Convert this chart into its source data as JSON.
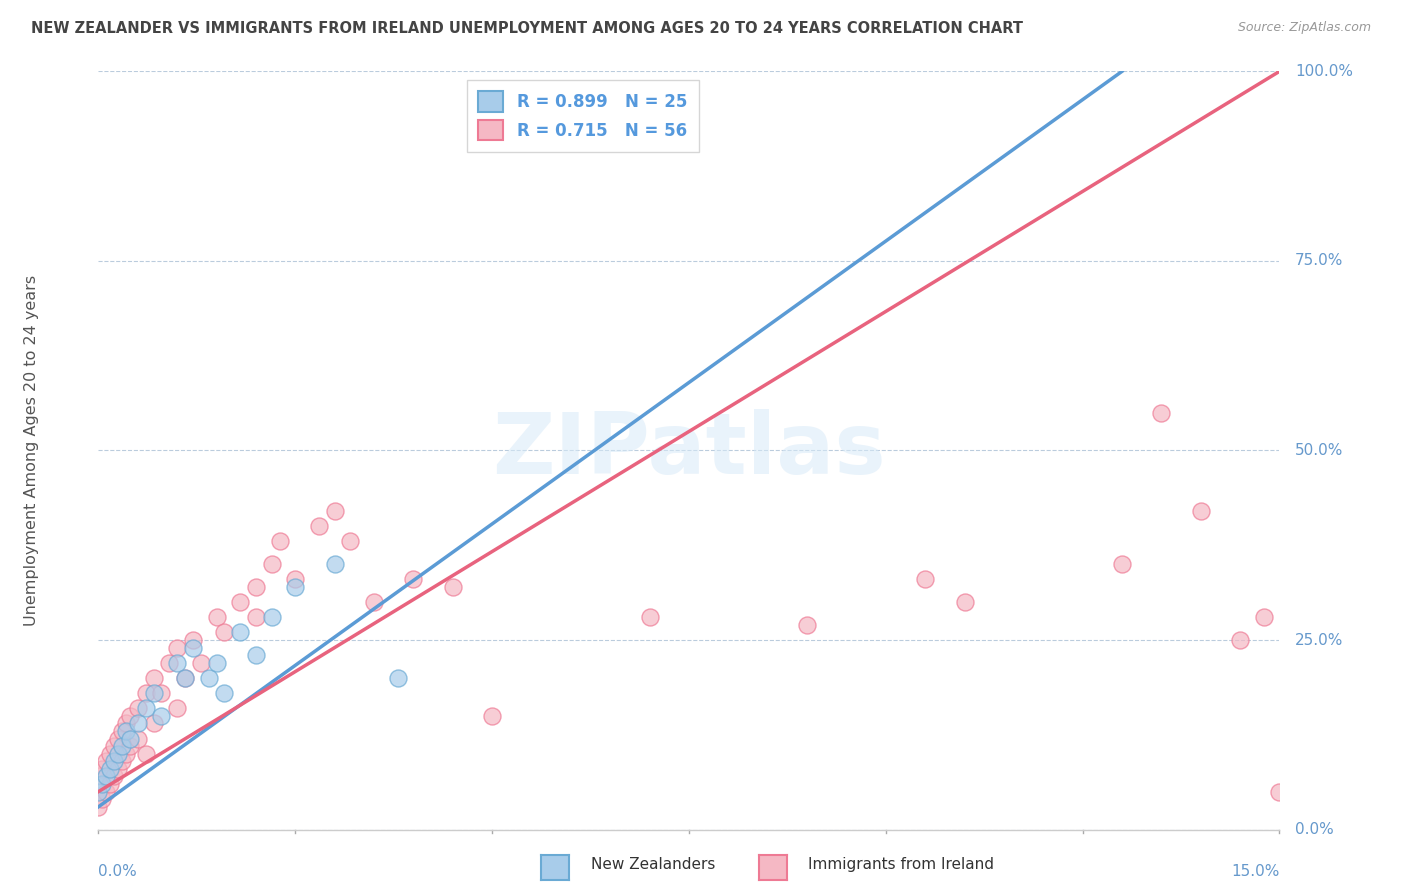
{
  "title": "NEW ZEALANDER VS IMMIGRANTS FROM IRELAND UNEMPLOYMENT AMONG AGES 20 TO 24 YEARS CORRELATION CHART",
  "source": "Source: ZipAtlas.com",
  "ylabel": "Unemployment Among Ages 20 to 24 years",
  "ytick_labels": [
    "0.0%",
    "25.0%",
    "50.0%",
    "75.0%",
    "100.0%"
  ],
  "ytick_values": [
    0,
    25,
    50,
    75,
    100
  ],
  "xmin": 0.0,
  "xmax": 15.0,
  "ymin": 0.0,
  "ymax": 100.0,
  "nz_R": 0.899,
  "nz_N": 25,
  "ire_R": 0.715,
  "ire_N": 56,
  "nz_color": "#A8CCEA",
  "ire_color": "#F5B8C4",
  "nz_edge_color": "#6AAAD4",
  "ire_edge_color": "#EE7A94",
  "nz_line_color": "#5B9BD5",
  "ire_line_color": "#E8637E",
  "legend_nz_color": "#A8CCEA",
  "legend_ire_color": "#F5B8C4",
  "watermark": "ZIPatlas",
  "nz_line_x0": 0.0,
  "nz_line_y0": 3.0,
  "nz_line_x1": 13.0,
  "nz_line_y1": 100.0,
  "ire_line_x0": 0.0,
  "ire_line_y0": 5.0,
  "ire_line_x1": 15.0,
  "ire_line_y1": 100.0,
  "nz_scatter_x": [
    0.0,
    0.05,
    0.1,
    0.15,
    0.2,
    0.25,
    0.3,
    0.35,
    0.4,
    0.5,
    0.6,
    0.7,
    0.8,
    1.0,
    1.1,
    1.2,
    1.4,
    1.5,
    1.6,
    1.8,
    2.0,
    2.2,
    2.5,
    3.0,
    3.8
  ],
  "nz_scatter_y": [
    5,
    6,
    7,
    8,
    9,
    10,
    11,
    13,
    12,
    14,
    16,
    18,
    15,
    22,
    20,
    24,
    20,
    22,
    18,
    26,
    23,
    28,
    32,
    35,
    20
  ],
  "ire_scatter_x": [
    0.0,
    0.0,
    0.05,
    0.05,
    0.1,
    0.1,
    0.15,
    0.15,
    0.2,
    0.2,
    0.25,
    0.25,
    0.3,
    0.3,
    0.35,
    0.35,
    0.4,
    0.4,
    0.5,
    0.5,
    0.6,
    0.6,
    0.7,
    0.7,
    0.8,
    0.9,
    1.0,
    1.0,
    1.1,
    1.2,
    1.3,
    1.5,
    1.6,
    1.8,
    2.0,
    2.0,
    2.2,
    2.3,
    2.5,
    2.8,
    3.0,
    3.2,
    3.5,
    4.0,
    4.5,
    5.0,
    7.0,
    9.0,
    10.5,
    11.0,
    13.0,
    13.5,
    14.0,
    14.5,
    14.8,
    15.0
  ],
  "ire_scatter_y": [
    3,
    7,
    4,
    8,
    5,
    9,
    6,
    10,
    7,
    11,
    8,
    12,
    9,
    13,
    10,
    14,
    11,
    15,
    12,
    16,
    10,
    18,
    14,
    20,
    18,
    22,
    16,
    24,
    20,
    25,
    22,
    28,
    26,
    30,
    32,
    28,
    35,
    38,
    33,
    40,
    42,
    38,
    30,
    33,
    32,
    15,
    28,
    27,
    33,
    30,
    35,
    55,
    42,
    25,
    28,
    5
  ]
}
